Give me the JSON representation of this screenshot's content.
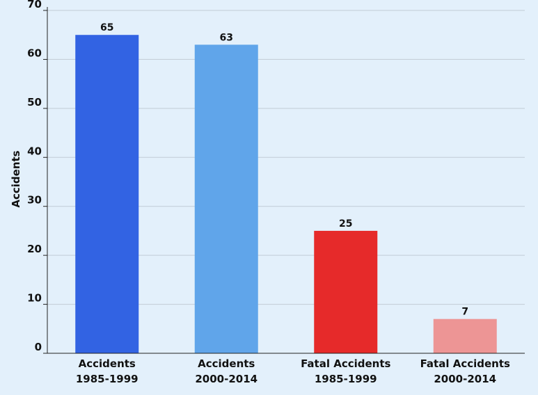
{
  "chart_data": {
    "type": "bar",
    "categories": [
      [
        "Accidents",
        "1985-1999"
      ],
      [
        "Accidents",
        "2000-2014"
      ],
      [
        "Fatal Accidents",
        "1985-1999"
      ],
      [
        "Fatal Accidents",
        "2000-2014"
      ]
    ],
    "values": [
      65,
      63,
      25,
      7
    ],
    "colors": [
      "#3263e3",
      "#60a5ea",
      "#e62a2a",
      "#ed9595"
    ],
    "ylabel": "Accidents",
    "xlabel": "",
    "ylim": [
      0,
      70
    ],
    "yticks": [
      0,
      10,
      20,
      30,
      40,
      50,
      60,
      70
    ],
    "grid": true,
    "data_labels": true
  }
}
